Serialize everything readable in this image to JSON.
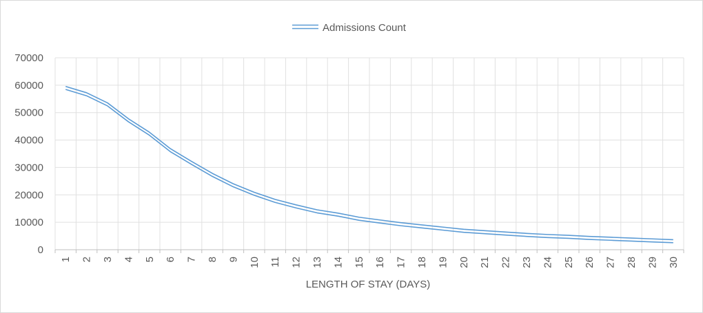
{
  "chart_data": {
    "type": "line",
    "title": "",
    "xlabel": "LENGTH OF STAY (DAYS)",
    "ylabel": "",
    "ylim": [
      0,
      70000
    ],
    "yticks": [
      0,
      10000,
      20000,
      30000,
      40000,
      50000,
      60000,
      70000
    ],
    "grid": true,
    "legend_position": "top",
    "x": [
      1,
      2,
      3,
      4,
      5,
      6,
      7,
      8,
      9,
      10,
      11,
      12,
      13,
      14,
      15,
      16,
      17,
      18,
      19,
      20,
      21,
      22,
      23,
      24,
      25,
      26,
      27,
      28,
      29,
      30
    ],
    "series": [
      {
        "name": "Admissions Count",
        "color": "#5b9bd5",
        "values": [
          59000,
          56700,
          53000,
          47200,
          42300,
          36300,
          31700,
          27300,
          23500,
          20400,
          17800,
          15800,
          14000,
          12800,
          11300,
          10300,
          9300,
          8500,
          7700,
          6900,
          6400,
          5900,
          5400,
          5000,
          4700,
          4300,
          4000,
          3700,
          3400,
          3100
        ]
      }
    ]
  }
}
